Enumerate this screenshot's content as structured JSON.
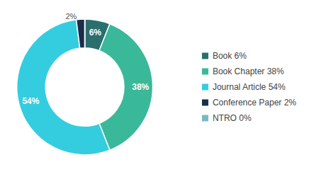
{
  "chart_data": {
    "type": "pie",
    "categories": [
      "Book 6%",
      "Book Chapter 38%",
      "Journal Article 54%",
      "Conference Paper 2%",
      "NTRO 0%"
    ],
    "values": [
      6,
      38,
      54,
      2,
      0.001
    ],
    "value_labels": [
      "6%",
      "38%",
      "54%",
      "2%",
      null
    ],
    "colors": [
      "#2a6e6e",
      "#3ab89a",
      "#34cde0",
      "#1a2e4a",
      "#7ab8c0"
    ],
    "data_labels": true,
    "legend": "right"
  }
}
